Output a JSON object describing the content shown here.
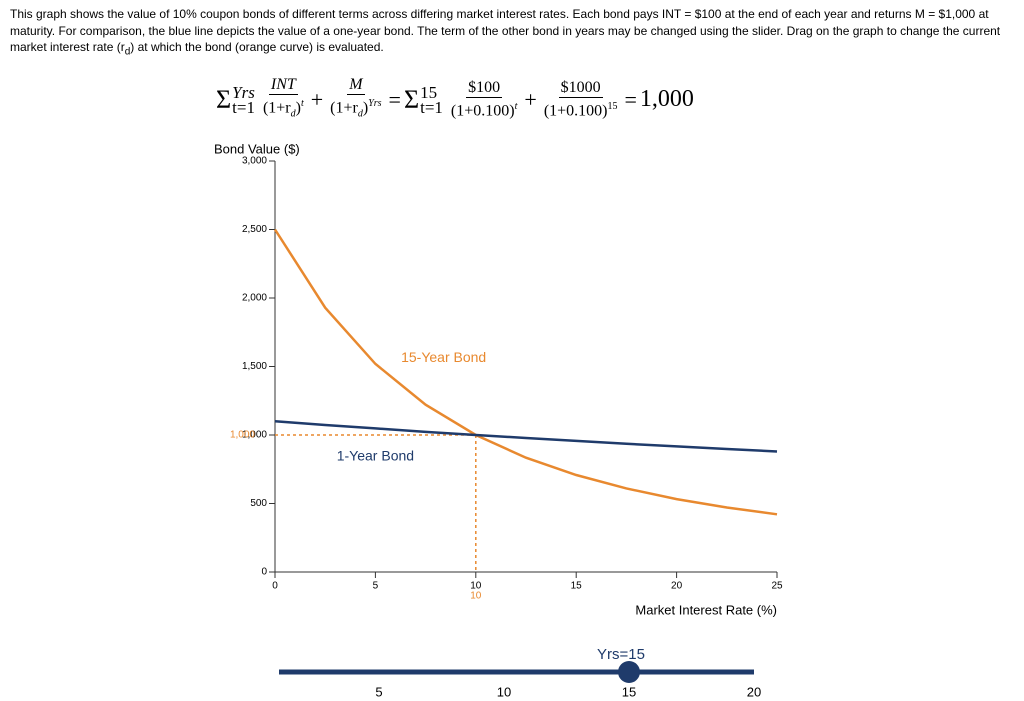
{
  "intro": {
    "before": "This graph shows the value of 10% coupon bonds of different terms across differing market interest rates. Each bond pays INT = $100 at the end of each year and returns M = $1,000 at maturity. For comparison, the blue line depicts the value of a one-year bond. The term of the other bond in years may be changed using the slider. Drag on the graph to change the current market interest rate (r",
    "sub": "d",
    "after": ") at which the bond (orange curve) is evaluated."
  },
  "formula": {
    "sigma": "Σ",
    "yrs": "Yrs",
    "t1": "t=1",
    "int": "INT",
    "one_plus_r": "(1+r",
    "d": "d",
    "close": ")",
    "t": "t",
    "plus": "+",
    "m": "M",
    "equals": "=",
    "years": 15,
    "coupon": "$100",
    "rate_expr": "(1+0.100)",
    "maturity": "$1000",
    "price": "1,000"
  },
  "chart_data": {
    "type": "line",
    "y_label": "Bond Value ($)",
    "x_label": "Market Interest Rate (%)",
    "x": [
      0,
      2.5,
      5,
      7.5,
      10,
      12.5,
      15,
      17.5,
      20,
      22.5,
      25
    ],
    "series": [
      {
        "name": "15-Year Bond",
        "color": "#e8892f",
        "values": [
          2500,
          1929,
          1519,
          1221,
          1000,
          834,
          708,
          610,
          532,
          471,
          421
        ]
      },
      {
        "name": "1-Year Bond",
        "color": "#1f3b6b",
        "values": [
          1100,
          1073,
          1048,
          1023,
          1000,
          978,
          957,
          936,
          917,
          898,
          880
        ]
      }
    ],
    "xlim": [
      0,
      25
    ],
    "xticks": [
      0,
      5,
      10,
      15,
      20,
      25
    ],
    "ylim": [
      0,
      3000
    ],
    "yticks": [
      0,
      500,
      {
        "value": 1000,
        "label": "1,000"
      },
      {
        "value": 1500,
        "label": "1,500"
      },
      {
        "value": 2000,
        "label": "2,000"
      },
      {
        "value": 2500,
        "label": "2,500"
      },
      {
        "value": 3000,
        "label": "3,000"
      }
    ],
    "current": {
      "rate": 10,
      "value": {
        "value": 1000,
        "label": "1,000"
      },
      "color": "#e8892f"
    }
  },
  "slider": {
    "label": "Yrs=15",
    "min": 1,
    "max": 20,
    "value": 15,
    "ticks": [
      5,
      10,
      15,
      20
    ],
    "color": "#1f3b6b"
  }
}
